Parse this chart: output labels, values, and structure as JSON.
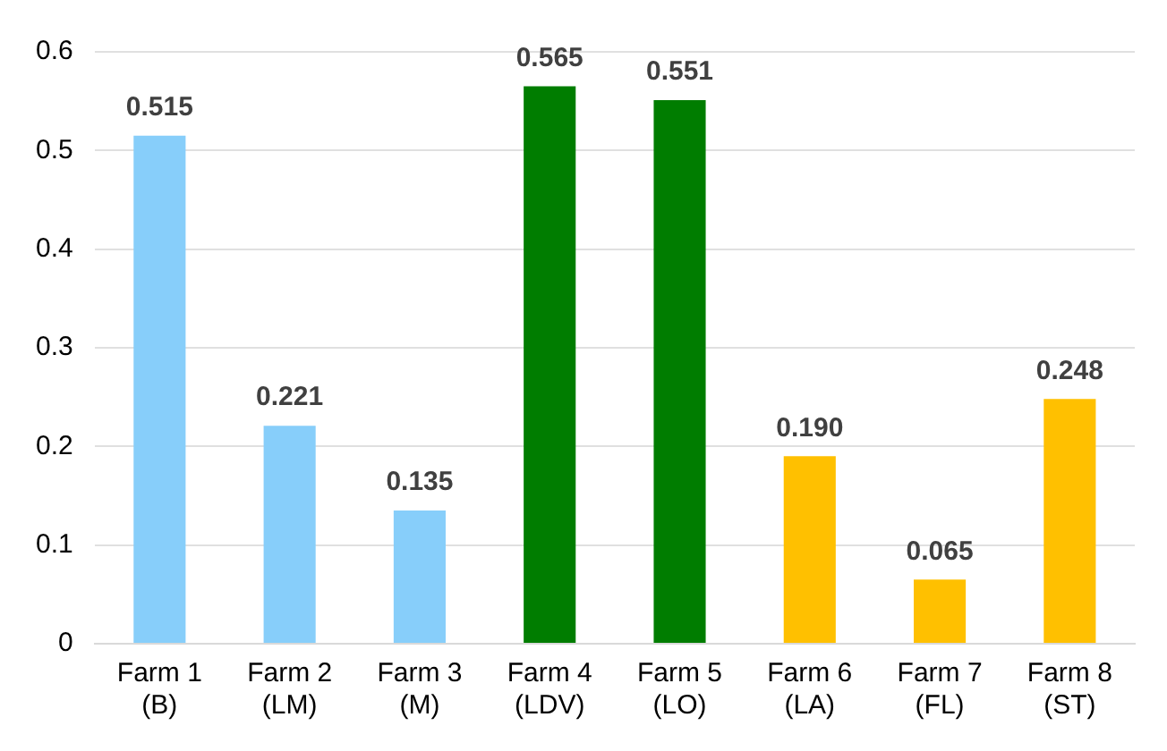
{
  "chart_data": {
    "type": "bar",
    "categories": [
      "Farm 1\n(B)",
      "Farm 2\n(LM)",
      "Farm 3\n(M)",
      "Farm 4\n(LDV)",
      "Farm 5\n(LO)",
      "Farm 6\n(LA)",
      "Farm 7\n(FL)",
      "Farm 8\n(ST)"
    ],
    "values": [
      0.515,
      0.221,
      0.135,
      0.565,
      0.551,
      0.19,
      0.065,
      0.248
    ],
    "value_labels": [
      "0.515",
      "0.221",
      "0.135",
      "0.565",
      "0.551",
      "0.190",
      "0.065",
      "0.248"
    ],
    "colors": [
      "#87cefa",
      "#87cefa",
      "#87cefa",
      "#007d00",
      "#007d00",
      "#ffc000",
      "#ffc000",
      "#ffc000"
    ],
    "ylim": [
      0,
      0.6
    ],
    "yticks": [
      0,
      0.1,
      0.2,
      0.3,
      0.4,
      0.5,
      0.6
    ],
    "grid": "y"
  }
}
